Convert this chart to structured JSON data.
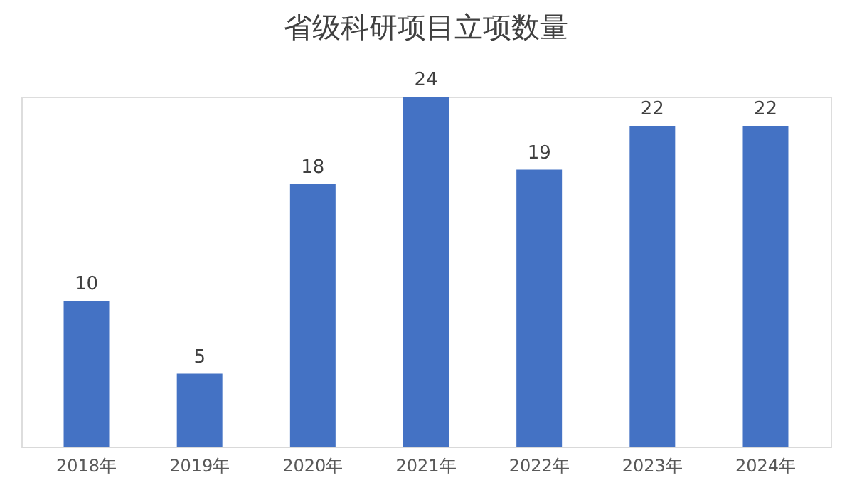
{
  "chart_data": {
    "type": "bar",
    "title": "省级科研项目立项数量",
    "categories": [
      "2018年",
      "2019年",
      "2020年",
      "2021年",
      "2022年",
      "2023年",
      "2024年"
    ],
    "values": [
      10,
      5,
      18,
      24,
      19,
      22,
      22
    ],
    "color": "#4472c4",
    "data_labels": true
  }
}
